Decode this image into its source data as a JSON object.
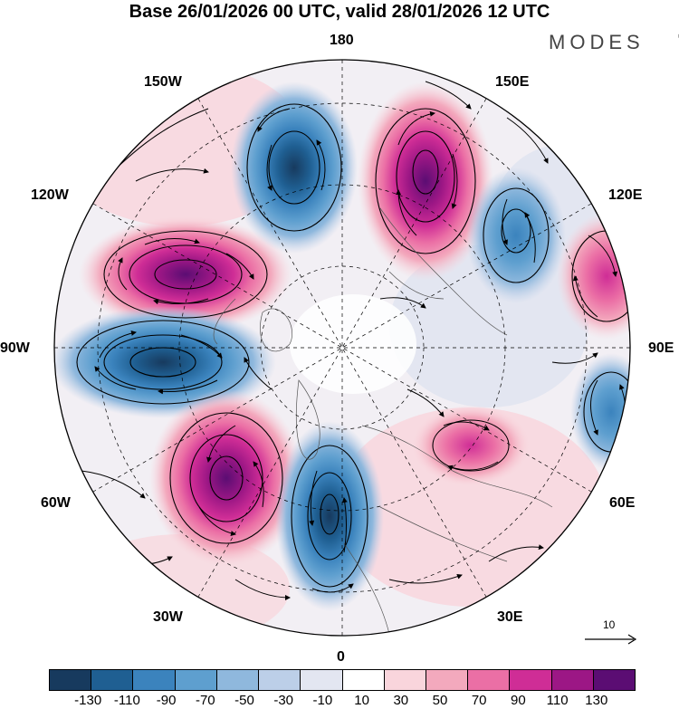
{
  "title": "Base 26/01/2026 00 UTC, valid 28/01/2026 12 UTC",
  "brand": {
    "name": "MODES",
    "mark": "©"
  },
  "longitude_labels": {
    "n180": "180",
    "w150": "150W",
    "e150": "150E",
    "w120": "120W",
    "e120": "120E",
    "w90": "90W",
    "e90": "90E",
    "w60": "60W",
    "e60": "60E",
    "w30": "30W",
    "e30": "30E",
    "s0": "0"
  },
  "vector_key": {
    "label": "10"
  },
  "colorbar": {
    "labels": [
      "-130",
      "-110",
      "-90",
      "-70",
      "-50",
      "-30",
      "-10",
      "10",
      "30",
      "50",
      "70",
      "90",
      "110",
      "130"
    ],
    "colors": [
      "#173a5e",
      "#1f5f92",
      "#3b83bd",
      "#5e9fcf",
      "#8fb8dd",
      "#bccfe8",
      "#e3e6f1",
      "#ffffff",
      "#f9d5dc",
      "#f3a9bd",
      "#eb6fa5",
      "#cf2d96",
      "#9c1785",
      "#5b0d73"
    ]
  },
  "anomalies": [
    {
      "sign": "positive",
      "level": 10
    },
    {
      "sign": "negative",
      "level": 10
    },
    {
      "sign": "positive",
      "level": 9
    },
    {
      "sign": "negative",
      "level": 8
    },
    {
      "sign": "positive",
      "level": 9
    },
    {
      "sign": "negative",
      "level": 9
    },
    {
      "sign": "negative",
      "level": 6
    },
    {
      "sign": "positive",
      "level": 5
    },
    {
      "sign": "negative",
      "level": 6
    },
    {
      "sign": "positive",
      "level": 6
    }
  ]
}
